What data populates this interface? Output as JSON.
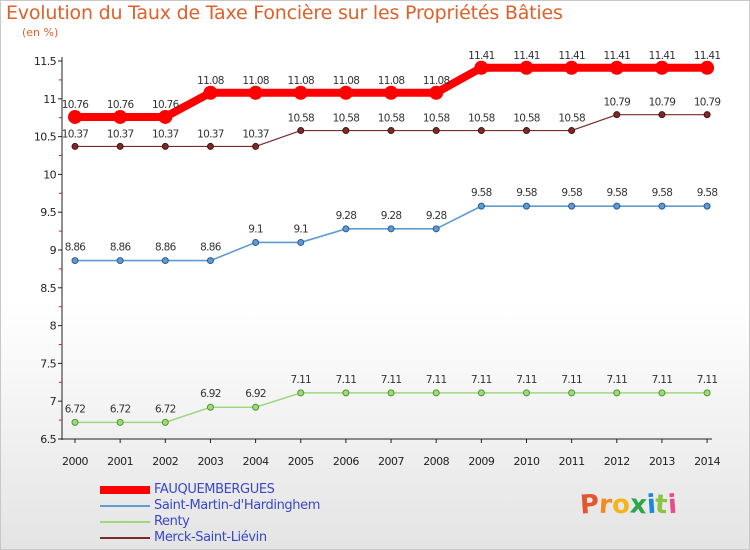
{
  "chart_data": {
    "type": "line",
    "title": "Evolution du Taux de Taxe Foncière sur les Propriétés Bâties",
    "unit_label": "(en %)",
    "xlabel": "",
    "ylabel": "",
    "x": [
      "2000",
      "2001",
      "2002",
      "2003",
      "2004",
      "2005",
      "2006",
      "2007",
      "2008",
      "2009",
      "2010",
      "2011",
      "2012",
      "2013",
      "2014"
    ],
    "ylim": [
      6.5,
      11.5
    ],
    "yticks": [
      "6.5",
      "7",
      "7.5",
      "8",
      "8.5",
      "9",
      "9.5",
      "10",
      "10.5",
      "11",
      "11.5"
    ],
    "grid": false,
    "legend_position": "bottom-left",
    "series": [
      {
        "name": "FAUQUEMBERGUES",
        "color": "#ff0000",
        "values": [
          10.76,
          10.76,
          10.76,
          11.08,
          11.08,
          11.08,
          11.08,
          11.08,
          11.08,
          11.41,
          11.41,
          11.41,
          11.41,
          11.41,
          11.41
        ],
        "labels": [
          "10.76",
          "10.76",
          "10.76",
          "11.08",
          "11.08",
          "11.08",
          "11.08",
          "11.08",
          "11.08",
          "11.41",
          "11.41",
          "11.41",
          "11.41",
          "11.41",
          "11.41"
        ]
      },
      {
        "name": "Saint-Martin-d'Hardinghem",
        "color": "#5f9ad0",
        "values": [
          8.86,
          8.86,
          8.86,
          8.86,
          9.1,
          9.1,
          9.28,
          9.28,
          9.28,
          9.58,
          9.58,
          9.58,
          9.58,
          9.58,
          9.58
        ],
        "labels": [
          "8.86",
          "8.86",
          "8.86",
          "8.86",
          "9.1",
          "9.1",
          "9.28",
          "9.28",
          "9.28",
          "9.58",
          "9.58",
          "9.58",
          "9.58",
          "9.58",
          "9.58"
        ]
      },
      {
        "name": "Renty",
        "color": "#a0d880",
        "values": [
          6.72,
          6.72,
          6.72,
          6.92,
          6.92,
          7.11,
          7.11,
          7.11,
          7.11,
          7.11,
          7.11,
          7.11,
          7.11,
          7.11,
          7.11
        ],
        "labels": [
          "6.72",
          "6.72",
          "6.72",
          "6.92",
          "6.92",
          "7.11",
          "7.11",
          "7.11",
          "7.11",
          "7.11",
          "7.11",
          "7.11",
          "7.11",
          "7.11",
          "7.11"
        ]
      },
      {
        "name": "Merck-Saint-Liévin",
        "color": "#7a2a2a",
        "values": [
          10.37,
          10.37,
          10.37,
          10.37,
          10.37,
          10.58,
          10.58,
          10.58,
          10.58,
          10.58,
          10.58,
          10.58,
          10.79,
          10.79,
          10.79
        ],
        "labels": [
          "10.37",
          "10.37",
          "10.37",
          "10.37",
          "10.37",
          "10.58",
          "10.58",
          "10.58",
          "10.58",
          "10.58",
          "10.58",
          "10.58",
          "10.79",
          "10.79",
          "10.79"
        ]
      }
    ]
  },
  "logo": {
    "text": "Proxiti",
    "colors": [
      "#e4572e",
      "#f28a1e",
      "#f2b51e",
      "#2ea64a",
      "#1e88d8",
      "#8bc53f",
      "#e84b8a"
    ]
  }
}
